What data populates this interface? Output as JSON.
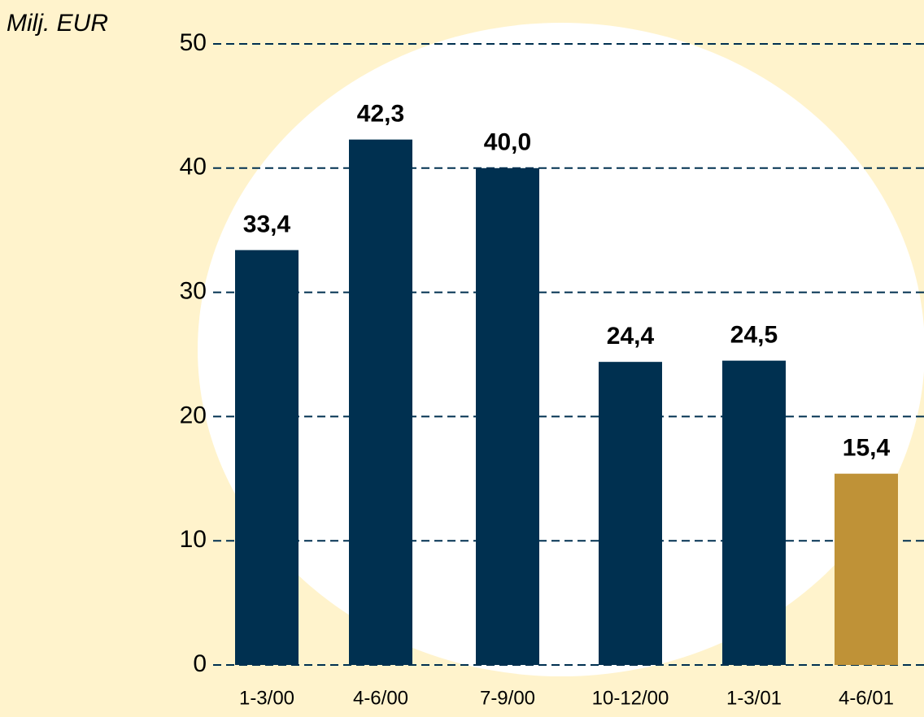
{
  "chart_data": {
    "type": "bar",
    "y_axis_label": "Milj. EUR",
    "categories": [
      "1-3/00",
      "4-6/00",
      "7-9/00",
      "10-12/00",
      "1-3/01",
      "4-6/01"
    ],
    "values": [
      33.4,
      42.3,
      40.0,
      24.4,
      24.5,
      15.4
    ],
    "value_labels": [
      "33,4",
      "42,3",
      "40,0",
      "24,4",
      "24,5",
      "15,4"
    ],
    "colors": [
      "#003050",
      "#003050",
      "#003050",
      "#003050",
      "#003050",
      "#bf9237"
    ],
    "ylim": [
      0,
      50
    ],
    "yticks": [
      0,
      10,
      20,
      30,
      40,
      50
    ],
    "grid": true
  }
}
